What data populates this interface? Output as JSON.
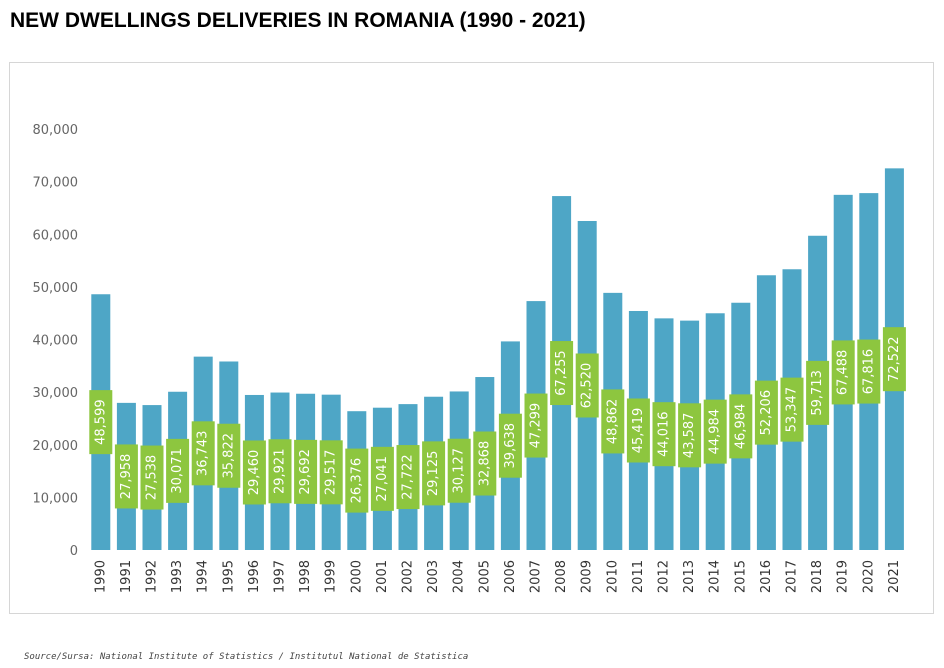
{
  "title": "NEW DWELLINGS DELIVERIES IN ROMANIA (1990 - 2021)",
  "source": "Source/Sursa: National Institute of Statistics / Institutul National de Statistica",
  "colors": {
    "bar": "#4ea6c6",
    "label_bg": "#8dc63f",
    "label_text": "#ffffff"
  },
  "chart_data": {
    "type": "bar",
    "categories": [
      "1990",
      "1991",
      "1992",
      "1993",
      "1994",
      "1995",
      "1996",
      "1997",
      "1998",
      "1999",
      "2000",
      "2001",
      "2002",
      "2003",
      "2004",
      "2005",
      "2006",
      "2007",
      "2008",
      "2009",
      "2010",
      "2011",
      "2012",
      "2013",
      "2014",
      "2015",
      "2016",
      "2017",
      "2018",
      "2019",
      "2020",
      "2021"
    ],
    "values": [
      48599,
      27958,
      27538,
      30071,
      36743,
      35822,
      29460,
      29921,
      29692,
      29517,
      26376,
      27041,
      27722,
      29125,
      30127,
      32868,
      39638,
      47299,
      67255,
      62520,
      48862,
      45419,
      44016,
      43587,
      44984,
      46984,
      52206,
      53347,
      59713,
      67488,
      67816,
      72522
    ],
    "data_labels": [
      "48,599",
      "27,958",
      "27,538",
      "30,071",
      "36,743",
      "35,822",
      "29,460",
      "29,921",
      "29,692",
      "29,517",
      "26,376",
      "27,041",
      "27,722",
      "29,125",
      "30,127",
      "32,868",
      "39,638",
      "47,299",
      "67,255",
      "62,520",
      "48,862",
      "45,419",
      "44,016",
      "43,587",
      "44,984",
      "46,984",
      "52,206",
      "53,347",
      "59,713",
      "67,488",
      "67,816",
      "72,522"
    ],
    "yticks": [
      "0",
      "10,000",
      "20,000",
      "30,000",
      "40,000",
      "50,000",
      "60,000",
      "70,000",
      "80,000"
    ],
    "ylim": [
      0,
      80000
    ],
    "grid": false,
    "legend": "none",
    "title": "",
    "xlabel": "",
    "ylabel": ""
  }
}
